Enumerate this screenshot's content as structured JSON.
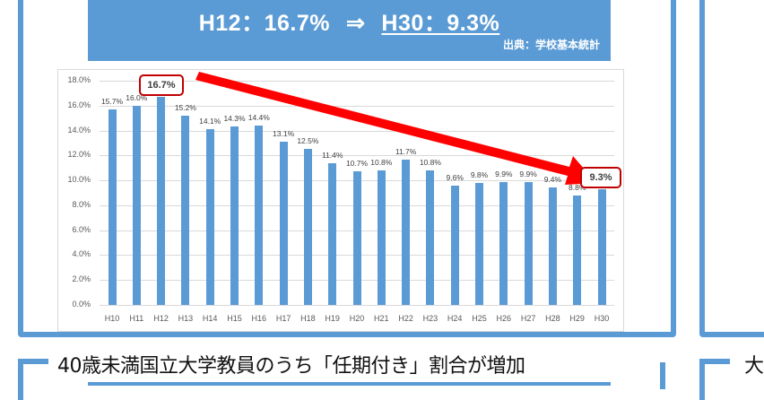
{
  "header": {
    "left_text": "H12：16.7%",
    "arrow": "⇒",
    "right_text": "H30：9.3%",
    "source": "出典：学校基本統計"
  },
  "callouts": {
    "peak": "16.7%",
    "last": "9.3%"
  },
  "bottom": {
    "title": "40歳未満国立大学教員のうち「任期付き」割合が増加",
    "right_partial": "大"
  },
  "colors": {
    "bar": "#5b9bd5",
    "frame": "#5b9bd5",
    "arrow": "#ff0000",
    "callout_border": "#c00000"
  },
  "chart_data": {
    "type": "bar",
    "title": "",
    "xlabel": "",
    "ylabel": "",
    "categories": [
      "H10",
      "H11",
      "H12",
      "H13",
      "H14",
      "H15",
      "H16",
      "H17",
      "H18",
      "H19",
      "H20",
      "H21",
      "H22",
      "H23",
      "H24",
      "H25",
      "H26",
      "H27",
      "H28",
      "H29",
      "H30"
    ],
    "values": [
      15.7,
      16.0,
      16.7,
      15.2,
      14.1,
      14.3,
      14.4,
      13.1,
      12.5,
      11.4,
      10.7,
      10.8,
      11.7,
      10.8,
      9.6,
      9.8,
      9.9,
      9.9,
      9.4,
      8.8,
      9.3
    ],
    "value_labels": [
      "15.7%",
      "16.0%",
      "16.7%",
      "15.2%",
      "14.1%",
      "14.3%",
      "14.4%",
      "13.1%",
      "12.5%",
      "11.4%",
      "10.7%",
      "10.8%",
      "11.7%",
      "10.8%",
      "9.6%",
      "9.8%",
      "9.9%",
      "9.9%",
      "9.4%",
      "8.8%",
      "9.3%"
    ],
    "ylim": [
      0,
      18
    ],
    "yticks": [
      "0.0%",
      "2.0%",
      "4.0%",
      "6.0%",
      "8.0%",
      "10.0%",
      "12.0%",
      "14.0%",
      "16.0%",
      "18.0%"
    ],
    "grid": true,
    "legend": null,
    "annotations": [
      {
        "type": "callout",
        "category": "H12",
        "text": "16.7%"
      },
      {
        "type": "callout",
        "category": "H30",
        "text": "9.3%"
      },
      {
        "type": "arrow",
        "from": "H12",
        "to": "H30",
        "color": "#ff0000",
        "meaning": "declining trend"
      }
    ]
  }
}
